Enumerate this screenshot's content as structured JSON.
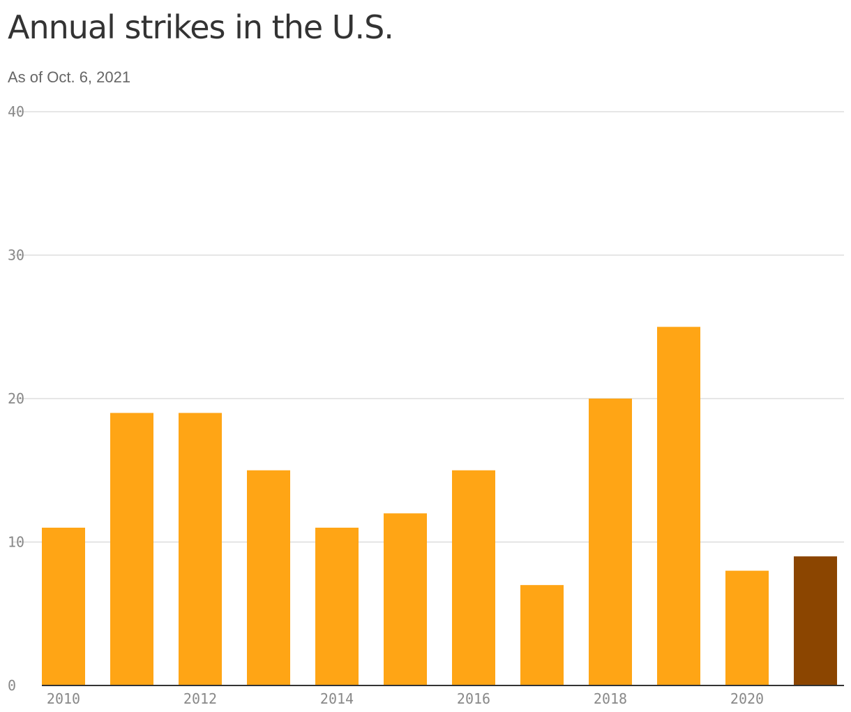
{
  "chart_data": {
    "type": "bar",
    "title": "Annual strikes in the U.S.",
    "subtitle": "As of Oct. 6, 2021",
    "xlabel": "",
    "ylabel": "",
    "categories": [
      "2010",
      "2011",
      "2012",
      "2013",
      "2014",
      "2015",
      "2016",
      "2017",
      "2018",
      "2019",
      "2020",
      "2021"
    ],
    "values": [
      11,
      19,
      19,
      15,
      11,
      12,
      15,
      7,
      20,
      25,
      8,
      9
    ],
    "x_tick_labels": [
      "2010",
      "2012",
      "2014",
      "2016",
      "2018",
      "2020"
    ],
    "y_ticks": [
      0,
      10,
      20,
      30,
      40
    ],
    "ylim": [
      0,
      40
    ],
    "grid": true,
    "legend": "none",
    "colors": {
      "bar": "#FFA515",
      "highlight": "#8B4500",
      "highlight_category": "2021"
    }
  }
}
